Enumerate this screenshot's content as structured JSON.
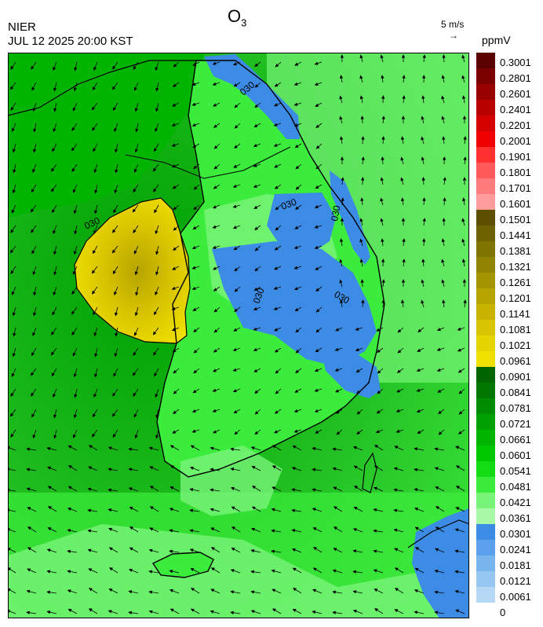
{
  "header": {
    "organization": "NIER",
    "timestamp": "JUL 12 2025 20:00 KST",
    "title_main": "O",
    "title_sub": "3",
    "wind_scale_label": "5 m/s",
    "wind_scale_arrow": "→",
    "units": "ppmV"
  },
  "legend": {
    "labels": [
      "0.3001",
      "0.2801",
      "0.2601",
      "0.2401",
      "0.2201",
      "0.2001",
      "0.1901",
      "0.1801",
      "0.1701",
      "0.1601",
      "0.1501",
      "0.1441",
      "0.1381",
      "0.1321",
      "0.1261",
      "0.1201",
      "0.1141",
      "0.1081",
      "0.1021",
      "0.0961",
      "0.0901",
      "0.0841",
      "0.0781",
      "0.0721",
      "0.0661",
      "0.0601",
      "0.0541",
      "0.0481",
      "0.0421",
      "0.0361",
      "0.0301",
      "0.0241",
      "0.0181",
      "0.0121",
      "0.0061",
      "0"
    ],
    "colors": [
      "#5a0000",
      "#7a0000",
      "#990000",
      "#b80000",
      "#d40000",
      "#f00000",
      "#ff3030",
      "#ff5a5a",
      "#ff7c7c",
      "#ff9c9c",
      "#5c5000",
      "#6e6200",
      "#807400",
      "#928400",
      "#a49400",
      "#b6a400",
      "#c8b400",
      "#d8c400",
      "#e6d400",
      "#f0e000",
      "#006400",
      "#007800",
      "#008c00",
      "#00a000",
      "#00b400",
      "#00c800",
      "#14dc14",
      "#3cec3c",
      "#78f478",
      "#a8f8a8",
      "#3c8ce6",
      "#5aa0ea",
      "#78b4ee",
      "#96c6f2",
      "#b4d8f6"
    ]
  },
  "map": {
    "contour_label": "030",
    "background_color": "#22cc22"
  }
}
